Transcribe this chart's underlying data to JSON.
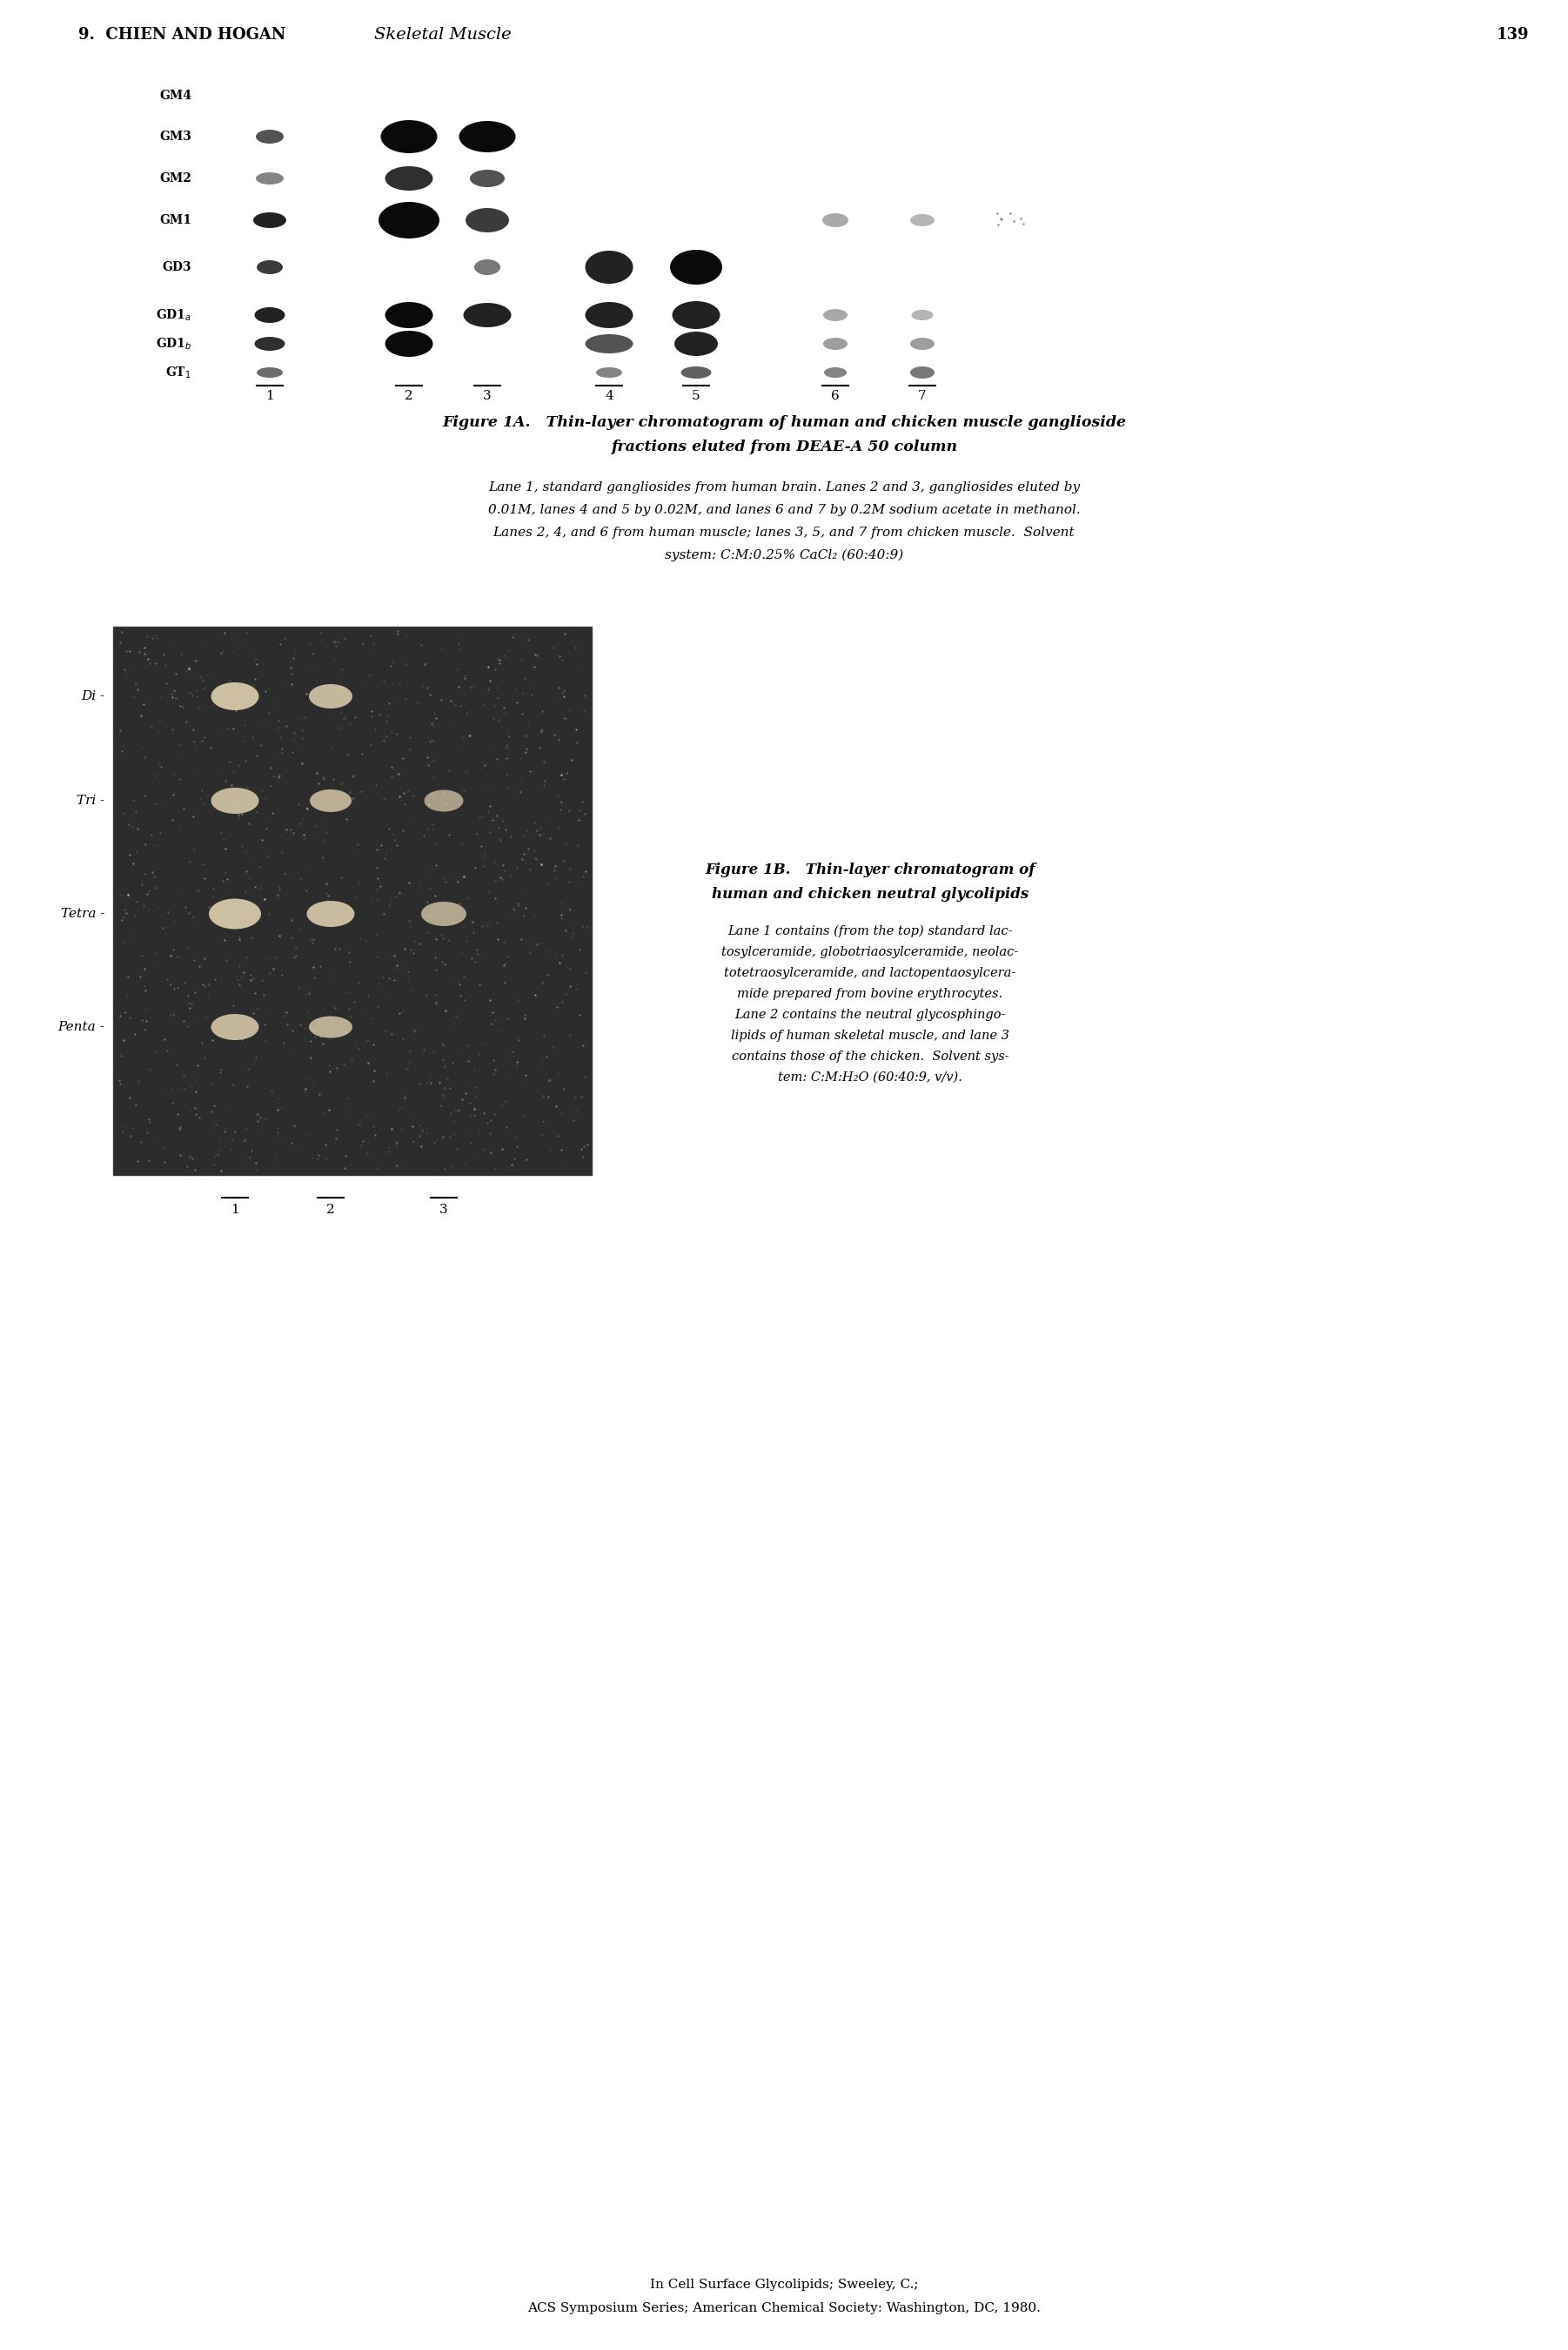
{
  "page_header_left": "9.  CHIEN AND HOGAN",
  "page_header_italic": "Skeletal Muscle",
  "page_number": "139",
  "fig1A_title_line1": "Figure 1A.   Thin-layer chromatogram of human and chicken muscle ganglioside",
  "fig1A_title_line2": "fractions eluted from DEAE-A 50 column",
  "fig1A_caption": "Lane 1, standard gangliosides from human brain. Lanes 2 and 3, gangliosides eluted by\n0.01M, lanes 4 and 5 by 0.02M, and lanes 6 and 7 by 0.2M sodium acetate in methanol.\nLanes 2, 4, and 6 from human muscle; lanes 3, 5, and 7 from chicken muscle.  Solvent\nsystem: C:M:0.25% CaCl₂ (60:40:9)",
  "fig1B_title_line1": "Figure 1B.   Thin-layer chromatogram of",
  "fig1B_title_line2": "human and chicken neutral glycolipids",
  "fig1B_caption": "Lane 1 contains (from the top) standard lac-\ntosylceramide, globotriaosylceramide, neolac-\ntotetraosylceramide, and lactopentaosylcera-\nmide prepared from bovine erythrocytes.\nLane 2 contains the neutral glycosphingo-\nlipids of human skeletal muscle, and lane 3\ncontains those of the chicken.  Solvent sys-\ntem: C:M:H₂O (60:40:9, v/v).",
  "footer_line1": "In Cell Surface Glycolipids; Sweeley, C.;",
  "footer_line2": "ACS Symposium Series; American Chemical Society: Washington, DC, 1980.",
  "row_labels_1A": [
    "GM4",
    "GM3",
    "GM2",
    "GM1",
    "GD3",
    "GD1a",
    "GD1b",
    "GT1"
  ],
  "lane_labels_1A": [
    "1",
    "2",
    "3",
    "4",
    "5",
    "6",
    "7"
  ],
  "row_labels_1B": [
    "Di",
    "Tri",
    "Tetra",
    "Penta"
  ],
  "lane_labels_1B": [
    "1",
    "2",
    "3"
  ],
  "background_color": "#ffffff",
  "band_color": "#111111",
  "faint_band_color": "#555555",
  "tlc_bg": "#c8c8c8"
}
